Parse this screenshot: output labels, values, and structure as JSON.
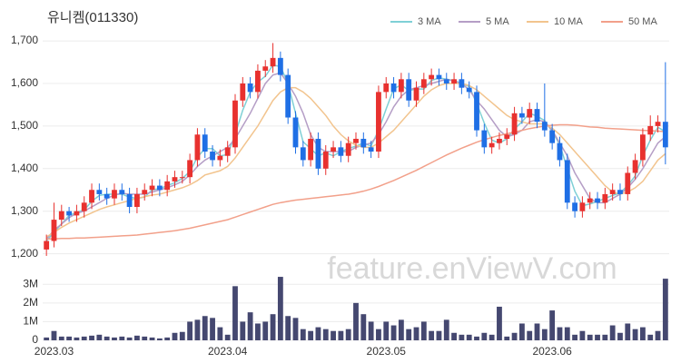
{
  "chart_data": [
    {
      "type": "candlestick",
      "title": "유니켐(011330)",
      "watermark": "feature.enViewV.com",
      "up_color": "#e8312f",
      "down_color": "#1f6fe5",
      "grid": true,
      "legend": "top-right",
      "ylim": [
        1180,
        1730
      ],
      "yticks": [
        {
          "value": 1200,
          "label": "1,200"
        },
        {
          "value": 1300,
          "label": "1,300"
        },
        {
          "value": 1400,
          "label": "1,400"
        },
        {
          "value": 1500,
          "label": "1,500"
        },
        {
          "value": 1600,
          "label": "1,600"
        },
        {
          "value": 1700,
          "label": "1,700"
        }
      ],
      "open": [
        1210,
        1230,
        1280,
        1300,
        1290,
        1300,
        1320,
        1350,
        1340,
        1330,
        1350,
        1340,
        1310,
        1340,
        1350,
        1360,
        1350,
        1370,
        1380,
        1380,
        1420,
        1480,
        1440,
        1420,
        1430,
        1450,
        1560,
        1600,
        1580,
        1630,
        1640,
        1660,
        1620,
        1520,
        1450,
        1420,
        1470,
        1400,
        1440,
        1450,
        1430,
        1460,
        1470,
        1450,
        1440,
        1580,
        1600,
        1580,
        1610,
        1560,
        1590,
        1610,
        1620,
        1610,
        1600,
        1610,
        1590,
        1580,
        1490,
        1450,
        1460,
        1470,
        1480,
        1530,
        1520,
        1540,
        1510,
        1490,
        1460,
        1420,
        1320,
        1300,
        1320,
        1330,
        1320,
        1340,
        1350,
        1340,
        1390,
        1420,
        1480,
        1500,
        1510
      ],
      "high": [
        1245,
        1320,
        1315,
        1310,
        1315,
        1335,
        1365,
        1365,
        1355,
        1365,
        1365,
        1355,
        1355,
        1365,
        1375,
        1375,
        1385,
        1395,
        1395,
        1435,
        1495,
        1495,
        1455,
        1445,
        1465,
        1575,
        1615,
        1615,
        1645,
        1655,
        1695,
        1675,
        1635,
        1535,
        1465,
        1485,
        1485,
        1455,
        1465,
        1465,
        1475,
        1485,
        1485,
        1465,
        1595,
        1615,
        1615,
        1625,
        1625,
        1605,
        1625,
        1635,
        1635,
        1625,
        1625,
        1625,
        1605,
        1595,
        1505,
        1475,
        1485,
        1495,
        1545,
        1545,
        1555,
        1555,
        1600,
        1505,
        1475,
        1435,
        1335,
        1335,
        1345,
        1345,
        1355,
        1365,
        1365,
        1405,
        1435,
        1495,
        1525,
        1525,
        1650
      ],
      "low": [
        1195,
        1215,
        1265,
        1275,
        1275,
        1285,
        1305,
        1325,
        1315,
        1315,
        1325,
        1295,
        1295,
        1325,
        1335,
        1335,
        1335,
        1355,
        1365,
        1365,
        1405,
        1425,
        1405,
        1405,
        1415,
        1435,
        1545,
        1565,
        1565,
        1615,
        1625,
        1605,
        1505,
        1435,
        1405,
        1405,
        1385,
        1385,
        1425,
        1415,
        1415,
        1445,
        1435,
        1425,
        1425,
        1565,
        1565,
        1565,
        1545,
        1545,
        1575,
        1595,
        1595,
        1585,
        1585,
        1575,
        1565,
        1475,
        1435,
        1435,
        1445,
        1455,
        1465,
        1505,
        1505,
        1495,
        1475,
        1445,
        1405,
        1305,
        1285,
        1285,
        1305,
        1305,
        1305,
        1325,
        1325,
        1325,
        1375,
        1405,
        1465,
        1485,
        1410
      ],
      "close": [
        1230,
        1280,
        1300,
        1290,
        1300,
        1320,
        1350,
        1340,
        1330,
        1350,
        1340,
        1310,
        1340,
        1350,
        1360,
        1350,
        1370,
        1380,
        1380,
        1420,
        1480,
        1440,
        1420,
        1430,
        1450,
        1560,
        1600,
        1580,
        1630,
        1640,
        1660,
        1620,
        1520,
        1450,
        1420,
        1470,
        1400,
        1440,
        1450,
        1430,
        1460,
        1470,
        1450,
        1440,
        1580,
        1600,
        1580,
        1610,
        1560,
        1590,
        1610,
        1620,
        1610,
        1600,
        1610,
        1590,
        1580,
        1490,
        1450,
        1460,
        1470,
        1480,
        1530,
        1520,
        1540,
        1510,
        1490,
        1460,
        1420,
        1320,
        1300,
        1320,
        1330,
        1320,
        1340,
        1350,
        1340,
        1390,
        1420,
        1480,
        1500,
        1510,
        1450
      ],
      "series": [
        {
          "name": "3 MA",
          "color": "#7fd0d6",
          "values": [
            1230,
            1250,
            1270,
            1290,
            1297,
            1303,
            1323,
            1337,
            1340,
            1340,
            1340,
            1333,
            1330,
            1333,
            1350,
            1353,
            1360,
            1367,
            1377,
            1393,
            1427,
            1447,
            1447,
            1430,
            1433,
            1480,
            1537,
            1580,
            1603,
            1617,
            1643,
            1640,
            1600,
            1530,
            1463,
            1447,
            1430,
            1437,
            1430,
            1440,
            1447,
            1453,
            1460,
            1453,
            1490,
            1540,
            1587,
            1597,
            1583,
            1587,
            1587,
            1607,
            1613,
            1610,
            1607,
            1600,
            1593,
            1553,
            1507,
            1467,
            1460,
            1470,
            1493,
            1510,
            1530,
            1523,
            1513,
            1487,
            1457,
            1400,
            1347,
            1313,
            1317,
            1323,
            1330,
            1337,
            1343,
            1360,
            1383,
            1430,
            1467,
            1497,
            1487
          ]
        },
        {
          "name": "5 MA",
          "color": "#b59ec6",
          "values": [
            1235,
            1255,
            1270,
            1285,
            1295,
            1300,
            1310,
            1320,
            1330,
            1338,
            1342,
            1340,
            1340,
            1340,
            1345,
            1350,
            1355,
            1362,
            1370,
            1385,
            1405,
            1420,
            1430,
            1440,
            1450,
            1470,
            1500,
            1530,
            1565,
            1600,
            1620,
            1625,
            1600,
            1570,
            1530,
            1480,
            1450,
            1440,
            1440,
            1440,
            1440,
            1450,
            1455,
            1460,
            1480,
            1510,
            1545,
            1570,
            1585,
            1590,
            1595,
            1600,
            1605,
            1610,
            1605,
            1600,
            1585,
            1560,
            1540,
            1515,
            1490,
            1475,
            1480,
            1490,
            1510,
            1515,
            1510,
            1490,
            1460,
            1430,
            1390,
            1360,
            1330,
            1320,
            1320,
            1330,
            1340,
            1355,
            1375,
            1400,
            1430,
            1460,
            1475
          ]
        },
        {
          "name": "10 MA",
          "color": "#f2c48e",
          "values": [
            1240,
            1250,
            1262,
            1272,
            1280,
            1288,
            1296,
            1304,
            1310,
            1315,
            1320,
            1325,
            1330,
            1334,
            1338,
            1340,
            1345,
            1350,
            1355,
            1362,
            1372,
            1385,
            1390,
            1395,
            1405,
            1425,
            1450,
            1475,
            1500,
            1530,
            1560,
            1580,
            1590,
            1590,
            1580,
            1565,
            1545,
            1525,
            1500,
            1480,
            1465,
            1455,
            1450,
            1450,
            1460,
            1475,
            1490,
            1510,
            1530,
            1550,
            1570,
            1585,
            1595,
            1600,
            1600,
            1600,
            1595,
            1585,
            1570,
            1555,
            1540,
            1525,
            1515,
            1510,
            1505,
            1505,
            1505,
            1495,
            1480,
            1460,
            1440,
            1420,
            1400,
            1380,
            1360,
            1345,
            1340,
            1345,
            1355,
            1370,
            1395,
            1420,
            1435
          ]
        },
        {
          "name": "50 MA",
          "color": "#f2a08a",
          "values": [
            1235,
            1235,
            1236,
            1236,
            1237,
            1237,
            1238,
            1239,
            1240,
            1241,
            1242,
            1243,
            1244,
            1246,
            1248,
            1250,
            1252,
            1254,
            1257,
            1260,
            1264,
            1268,
            1272,
            1276,
            1280,
            1286,
            1292,
            1298,
            1304,
            1310,
            1316,
            1320,
            1323,
            1326,
            1328,
            1330,
            1332,
            1334,
            1336,
            1338,
            1340,
            1343,
            1347,
            1352,
            1358,
            1365,
            1372,
            1380,
            1388,
            1396,
            1405,
            1414,
            1423,
            1432,
            1440,
            1448,
            1455,
            1462,
            1468,
            1473,
            1478,
            1482,
            1486,
            1490,
            1494,
            1497,
            1500,
            1502,
            1503,
            1503,
            1502,
            1500,
            1498,
            1497,
            1495,
            1494,
            1493,
            1492,
            1491,
            1490,
            1489,
            1488,
            1487
          ]
        }
      ]
    },
    {
      "type": "bar",
      "color": "#454870",
      "grid": true,
      "categories": [
        null,
        "2023.03",
        null,
        null,
        null,
        null,
        null,
        null,
        null,
        null,
        null,
        null,
        null,
        null,
        null,
        null,
        null,
        null,
        null,
        null,
        null,
        null,
        null,
        null,
        "2023.04",
        null,
        null,
        null,
        null,
        null,
        null,
        null,
        null,
        null,
        null,
        null,
        null,
        null,
        null,
        null,
        null,
        null,
        null,
        null,
        null,
        "2023.05",
        null,
        null,
        null,
        null,
        null,
        null,
        null,
        null,
        null,
        null,
        null,
        null,
        null,
        null,
        null,
        null,
        null,
        null,
        null,
        null,
        null,
        "2023.06",
        null,
        null,
        null,
        null,
        null,
        null,
        null,
        null,
        null,
        null,
        null,
        null,
        null,
        null,
        null
      ],
      "values": [
        150000,
        500000,
        200000,
        200000,
        150000,
        200000,
        250000,
        300000,
        200000,
        150000,
        200000,
        150000,
        250000,
        200000,
        150000,
        100000,
        150000,
        400000,
        450000,
        1000000,
        1100000,
        1300000,
        1200000,
        700000,
        300000,
        2900000,
        1000000,
        1500000,
        900000,
        1000000,
        1400000,
        3400000,
        1300000,
        1200000,
        600000,
        500000,
        700000,
        600000,
        500000,
        500000,
        600000,
        2000000,
        1400000,
        1000000,
        600000,
        1000000,
        800000,
        1100000,
        600000,
        700000,
        1000000,
        500000,
        500000,
        1100000,
        400000,
        300000,
        300000,
        200000,
        400000,
        300000,
        1800000,
        200000,
        400000,
        900000,
        500000,
        900000,
        600000,
        1600000,
        700000,
        700000,
        300000,
        500000,
        300000,
        300000,
        300000,
        800000,
        400000,
        900000,
        600000,
        700000,
        300000,
        500000,
        3300000
      ],
      "ylim": [
        0,
        3500000
      ],
      "yticks": [
        0,
        {
          "value": 1000000,
          "label": "1M"
        },
        {
          "value": 2000000,
          "label": "2M"
        },
        {
          "value": 3000000,
          "label": "3M"
        }
      ]
    }
  ]
}
